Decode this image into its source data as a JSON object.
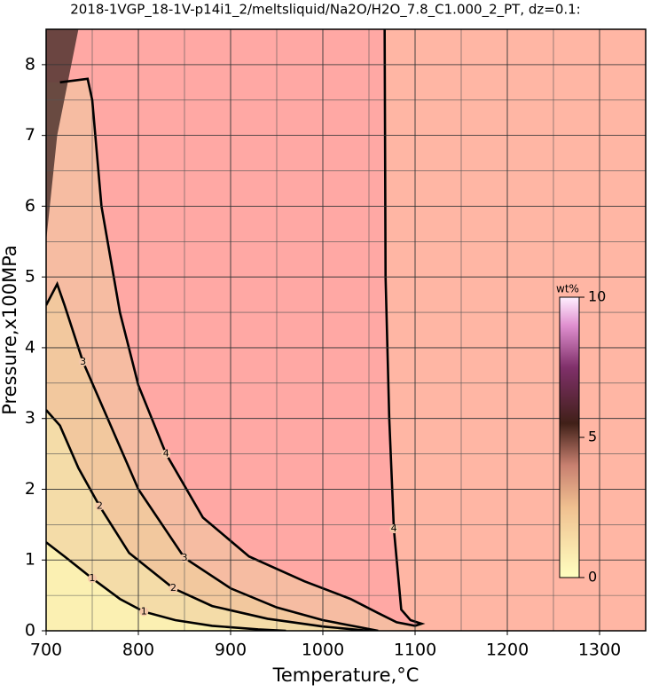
{
  "chart_data": {
    "type": "contour",
    "title": "2018-1VGP_18-1V-p14i1_2/meltsliquid/Na2O/H2O_7.8_C1.000_2_PT, dz=0.1:",
    "x_label": "Temperature,°C",
    "y_label": "Pressure,x100MPa",
    "xlim": [
      700,
      1350
    ],
    "xticks": [
      700,
      800,
      900,
      1000,
      1100,
      1200,
      1300
    ],
    "ylim": [
      0,
      8.5
    ],
    "yticks": [
      0,
      1,
      2,
      3,
      4,
      5,
      6,
      7,
      8
    ],
    "grid": true,
    "contours": [
      {
        "level": 1,
        "x": [
          700,
          720,
          750,
          780,
          806,
          840,
          880,
          930,
          960
        ],
        "y": [
          1.25,
          1.05,
          0.74,
          0.45,
          0.27,
          0.15,
          0.07,
          0.02,
          0
        ]
      },
      {
        "level": 2,
        "x": [
          700,
          715,
          735,
          758,
          790,
          838,
          880,
          940,
          1000,
          1050
        ],
        "y": [
          3.12,
          2.9,
          2.3,
          1.76,
          1.1,
          0.6,
          0.35,
          0.17,
          0.06,
          0
        ]
      },
      {
        "level": 3,
        "x": [
          700,
          712,
          720,
          740,
          762,
          800,
          850,
          900,
          950,
          1000,
          1040,
          1060
        ],
        "y": [
          4.6,
          4.9,
          4.6,
          3.8,
          3.14,
          2.0,
          1.03,
          0.6,
          0.33,
          0.15,
          0.05,
          0
        ]
      },
      {
        "level": 4,
        "x": [
          715,
          745,
          750,
          760,
          780,
          800,
          830,
          870,
          920,
          980,
          1030,
          1060,
          1080,
          1100,
          1107,
          1095,
          1085,
          1077,
          1072,
          1068,
          1067
        ],
        "y": [
          7.75,
          7.8,
          7.5,
          6.0,
          4.5,
          3.47,
          2.5,
          1.6,
          1.05,
          0.7,
          0.45,
          0.25,
          0.12,
          0.07,
          0.1,
          0.15,
          0.3,
          1.44,
          3,
          5,
          8.5
        ]
      }
    ],
    "colorbar": {
      "label": "wt%",
      "lim": [
        0,
        10
      ],
      "ticks": [
        0,
        5,
        10
      ]
    }
  }
}
